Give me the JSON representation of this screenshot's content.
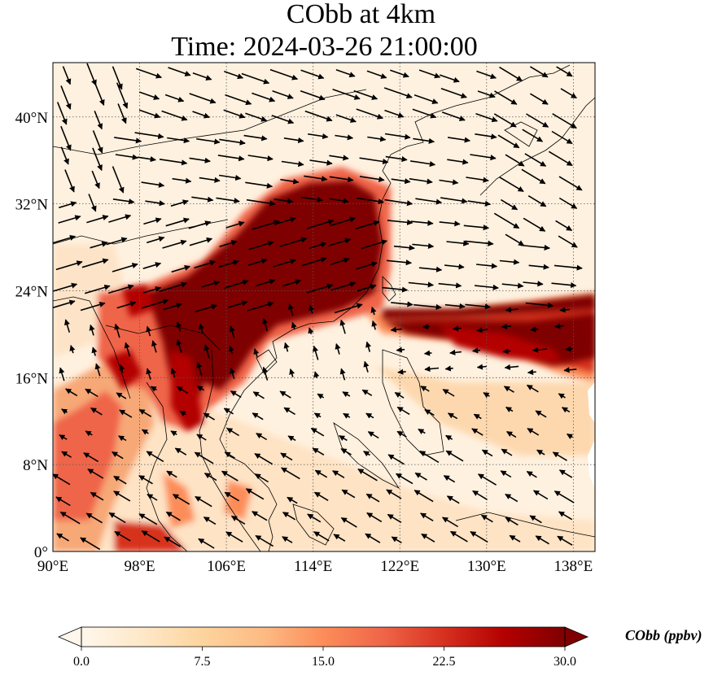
{
  "title": {
    "line1": "CObb at 4km",
    "line2": "Time: 2024-03-26 21:00:00"
  },
  "map": {
    "lon_range": [
      90,
      140
    ],
    "lat_range": [
      0,
      45
    ],
    "lon_ticks": [
      "90°E",
      "98°E",
      "106°E",
      "114°E",
      "122°E",
      "130°E",
      "138°E"
    ],
    "lon_tick_values": [
      90,
      98,
      106,
      114,
      122,
      130,
      138
    ],
    "lat_ticks": [
      "0°",
      "8°N",
      "16°N",
      "24°N",
      "32°N",
      "40°N"
    ],
    "lat_tick_values": [
      0,
      8,
      16,
      24,
      32,
      40
    ],
    "gridlines": true
  },
  "colorbar": {
    "label": "CObb (ppbv)",
    "ticks": [
      "0.0",
      "7.5",
      "15.0",
      "22.5",
      "30.0"
    ],
    "tick_values": [
      0,
      7.5,
      15,
      22.5,
      30
    ],
    "range": [
      0,
      30
    ],
    "extend": "both",
    "colormap": "OrRd",
    "colors": [
      "#fff7ec",
      "#fee8c8",
      "#fdd49e",
      "#fdbb84",
      "#fc8d59",
      "#ef6548",
      "#d7301f",
      "#b30000",
      "#7f0000"
    ]
  }
}
